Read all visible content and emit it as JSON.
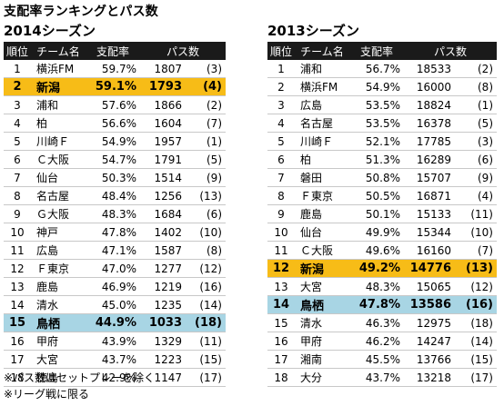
{
  "title": "支配率ランキングとパス数",
  "notes": [
    "※パス数はセットプレーを除く",
    "※リーグ戦に限る"
  ],
  "colors": {
    "header_bg": "#1a1a1a",
    "highlight_orange": "#f7bc17",
    "highlight_blue": "#a8d5e4"
  },
  "tables": [
    {
      "season": "2014シーズン",
      "headers": {
        "rank": "順位",
        "team": "チーム名",
        "possession": "支配率",
        "passes": "パス数"
      },
      "rows": [
        {
          "rank": "1",
          "team": "横浜FM",
          "possession": "59.7%",
          "passes": "1807",
          "pass_rank": "(3)",
          "highlight": ""
        },
        {
          "rank": "2",
          "team": "新潟",
          "possession": "59.1%",
          "passes": "1793",
          "pass_rank": "(4)",
          "highlight": "orange"
        },
        {
          "rank": "3",
          "team": "浦和",
          "possession": "57.6%",
          "passes": "1866",
          "pass_rank": "(2)",
          "highlight": ""
        },
        {
          "rank": "4",
          "team": "柏",
          "possession": "56.6%",
          "passes": "1604",
          "pass_rank": "(7)",
          "highlight": ""
        },
        {
          "rank": "5",
          "team": "川崎Ｆ",
          "possession": "54.9%",
          "passes": "1957",
          "pass_rank": "(1)",
          "highlight": ""
        },
        {
          "rank": "6",
          "team": "Ｃ大阪",
          "possession": "54.7%",
          "passes": "1791",
          "pass_rank": "(5)",
          "highlight": ""
        },
        {
          "rank": "7",
          "team": "仙台",
          "possession": "50.3%",
          "passes": "1514",
          "pass_rank": "(9)",
          "highlight": ""
        },
        {
          "rank": "8",
          "team": "名古屋",
          "possession": "48.4%",
          "passes": "1256",
          "pass_rank": "(13)",
          "highlight": ""
        },
        {
          "rank": "9",
          "team": "Ｇ大阪",
          "possession": "48.3%",
          "passes": "1684",
          "pass_rank": "(6)",
          "highlight": ""
        },
        {
          "rank": "10",
          "team": "神戸",
          "possession": "47.8%",
          "passes": "1402",
          "pass_rank": "(10)",
          "highlight": ""
        },
        {
          "rank": "11",
          "team": "広島",
          "possession": "47.1%",
          "passes": "1587",
          "pass_rank": "(8)",
          "highlight": ""
        },
        {
          "rank": "12",
          "team": "Ｆ東京",
          "possession": "47.0%",
          "passes": "1277",
          "pass_rank": "(12)",
          "highlight": ""
        },
        {
          "rank": "13",
          "team": "鹿島",
          "possession": "46.9%",
          "passes": "1219",
          "pass_rank": "(16)",
          "highlight": ""
        },
        {
          "rank": "14",
          "team": "清水",
          "possession": "45.0%",
          "passes": "1235",
          "pass_rank": "(14)",
          "highlight": ""
        },
        {
          "rank": "15",
          "team": "鳥栖",
          "possession": "44.9%",
          "passes": "1033",
          "pass_rank": "(18)",
          "highlight": "blue"
        },
        {
          "rank": "16",
          "team": "甲府",
          "possession": "43.9%",
          "passes": "1329",
          "pass_rank": "(11)",
          "highlight": ""
        },
        {
          "rank": "17",
          "team": "大宮",
          "possession": "43.7%",
          "passes": "1223",
          "pass_rank": "(15)",
          "highlight": ""
        },
        {
          "rank": "18",
          "team": "徳島",
          "possession": "42.9%",
          "passes": "1147",
          "pass_rank": "(17)",
          "highlight": ""
        }
      ]
    },
    {
      "season": "2013シーズン",
      "headers": {
        "rank": "順位",
        "team": "チーム名",
        "possession": "支配率",
        "passes": "パス数"
      },
      "rows": [
        {
          "rank": "1",
          "team": "浦和",
          "possession": "56.7%",
          "passes": "18533",
          "pass_rank": "(2)",
          "highlight": ""
        },
        {
          "rank": "2",
          "team": "横浜FM",
          "possession": "54.9%",
          "passes": "16000",
          "pass_rank": "(8)",
          "highlight": ""
        },
        {
          "rank": "3",
          "team": "広島",
          "possession": "53.5%",
          "passes": "18824",
          "pass_rank": "(1)",
          "highlight": ""
        },
        {
          "rank": "4",
          "team": "名古屋",
          "possession": "53.5%",
          "passes": "16378",
          "pass_rank": "(5)",
          "highlight": ""
        },
        {
          "rank": "5",
          "team": "川崎Ｆ",
          "possession": "52.1%",
          "passes": "17785",
          "pass_rank": "(3)",
          "highlight": ""
        },
        {
          "rank": "6",
          "team": "柏",
          "possession": "51.3%",
          "passes": "16289",
          "pass_rank": "(6)",
          "highlight": ""
        },
        {
          "rank": "7",
          "team": "磐田",
          "possession": "50.8%",
          "passes": "15707",
          "pass_rank": "(9)",
          "highlight": ""
        },
        {
          "rank": "8",
          "team": "Ｆ東京",
          "possession": "50.5%",
          "passes": "16871",
          "pass_rank": "(4)",
          "highlight": ""
        },
        {
          "rank": "9",
          "team": "鹿島",
          "possession": "50.1%",
          "passes": "15133",
          "pass_rank": "(11)",
          "highlight": ""
        },
        {
          "rank": "10",
          "team": "仙台",
          "possession": "49.9%",
          "passes": "15344",
          "pass_rank": "(10)",
          "highlight": ""
        },
        {
          "rank": "11",
          "team": "Ｃ大阪",
          "possession": "49.6%",
          "passes": "16160",
          "pass_rank": "(7)",
          "highlight": ""
        },
        {
          "rank": "12",
          "team": "新潟",
          "possession": "49.2%",
          "passes": "14776",
          "pass_rank": "(13)",
          "highlight": "orange"
        },
        {
          "rank": "13",
          "team": "大宮",
          "possession": "48.3%",
          "passes": "15065",
          "pass_rank": "(12)",
          "highlight": ""
        },
        {
          "rank": "14",
          "team": "鳥栖",
          "possession": "47.8%",
          "passes": "13586",
          "pass_rank": "(16)",
          "highlight": "blue"
        },
        {
          "rank": "15",
          "team": "清水",
          "possession": "46.3%",
          "passes": "12975",
          "pass_rank": "(18)",
          "highlight": ""
        },
        {
          "rank": "16",
          "team": "甲府",
          "possession": "46.2%",
          "passes": "14247",
          "pass_rank": "(14)",
          "highlight": ""
        },
        {
          "rank": "17",
          "team": "湘南",
          "possession": "45.5%",
          "passes": "13766",
          "pass_rank": "(15)",
          "highlight": ""
        },
        {
          "rank": "18",
          "team": "大分",
          "possession": "43.7%",
          "passes": "13218",
          "pass_rank": "(17)",
          "highlight": ""
        }
      ]
    }
  ]
}
